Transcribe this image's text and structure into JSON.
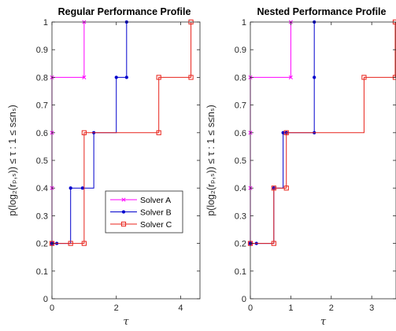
{
  "chart_data": [
    {
      "type": "line",
      "step": true,
      "title": "Regular Performance Profile",
      "xlabel": "τ",
      "ylabel": "p(log₂(rₚ,ₛ)) ≤ τ : 1 ≤ s≤nₛ)",
      "xlim": [
        0,
        4.6
      ],
      "ylim": [
        0,
        1
      ],
      "xticks": [
        0,
        2,
        4
      ],
      "yticks": [
        0,
        0.1,
        0.2,
        0.3,
        0.4,
        0.5,
        0.6,
        0.7,
        0.8,
        0.9,
        1
      ],
      "legend_position": "bottom-right",
      "series": [
        {
          "name": "Solver A",
          "color": "#ff00ff",
          "marker": "x",
          "x": [
            0,
            0,
            0,
            0,
            1,
            1
          ],
          "y": [
            0.2,
            0.4,
            0.6,
            0.8,
            0.8,
            1
          ]
        },
        {
          "name": "Solver B",
          "color": "#0000cd",
          "marker": "dot",
          "x": [
            0,
            0.15,
            0.58,
            0.95,
            1.3,
            2,
            2.32,
            2.32
          ],
          "y": [
            0.2,
            0.2,
            0.4,
            0.4,
            0.6,
            0.8,
            0.8,
            1
          ]
        },
        {
          "name": "Solver C",
          "color": "#e8231b",
          "marker": "square",
          "x": [
            0,
            0.58,
            1,
            1,
            3.32,
            3.32,
            4.32,
            4.32
          ],
          "y": [
            0.2,
            0.2,
            0.2,
            0.6,
            0.6,
            0.8,
            0.8,
            1
          ]
        }
      ]
    },
    {
      "type": "line",
      "step": true,
      "title": "Nested Performance Profile",
      "xlabel": "τ",
      "ylabel": "p(log₂(rₚ,ₛ)) ≤ τ : 1 ≤ s≤nₛ)",
      "xlim": [
        0,
        3.6
      ],
      "ylim": [
        0,
        1
      ],
      "xticks": [
        0,
        1,
        2,
        3
      ],
      "yticks": [
        0,
        0.1,
        0.2,
        0.3,
        0.4,
        0.5,
        0.6,
        0.7,
        0.8,
        0.9,
        1
      ],
      "series": [
        {
          "name": "Solver A",
          "color": "#ff00ff",
          "marker": "x",
          "x": [
            0,
            0,
            0,
            0,
            1,
            1
          ],
          "y": [
            0.2,
            0.4,
            0.6,
            0.8,
            0.8,
            1
          ]
        },
        {
          "name": "Solver B",
          "color": "#0000cd",
          "marker": "dot",
          "x": [
            0,
            0.15,
            0.58,
            0.81,
            0.89,
            1.58,
            1.58,
            1.58
          ],
          "y": [
            0.2,
            0.2,
            0.4,
            0.6,
            0.6,
            0.6,
            0.8,
            1
          ]
        },
        {
          "name": "Solver C",
          "color": "#e8231b",
          "marker": "square",
          "x": [
            0,
            0.58,
            0.58,
            0.89,
            0.89,
            2.81,
            3.58,
            3.58
          ],
          "y": [
            0.2,
            0.2,
            0.4,
            0.4,
            0.6,
            0.8,
            0.8,
            1
          ]
        }
      ]
    }
  ],
  "legend": {
    "entries": [
      "Solver A",
      "Solver B",
      "Solver C"
    ]
  }
}
